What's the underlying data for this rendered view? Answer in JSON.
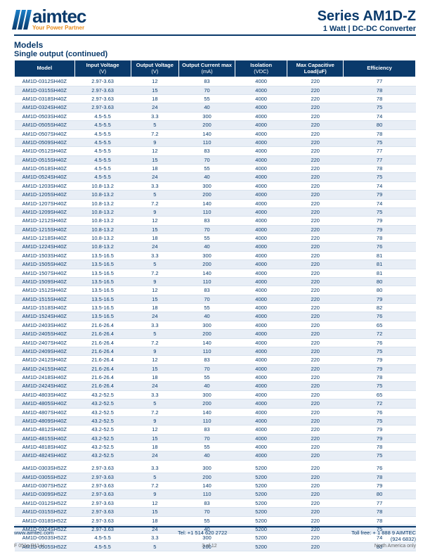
{
  "logo": {
    "main": "aimtec",
    "sub": "Your Power Partner"
  },
  "series": {
    "title": "Series AM1D-Z",
    "sub": "1 Watt | DC-DC Converter"
  },
  "section": {
    "models": "Models",
    "sub": "Single output (continued)"
  },
  "columns": [
    {
      "label": "Model",
      "unit": ""
    },
    {
      "label": "Input Voltage",
      "unit": "(V)"
    },
    {
      "label": "Output Voltage",
      "unit": "(V)"
    },
    {
      "label": "Output Current max",
      "unit": "(mA)"
    },
    {
      "label": "Isolation",
      "unit": "(VDC)"
    },
    {
      "label": "Max Capacitive Load(uF)",
      "unit": ""
    },
    {
      "label": "Efficiency",
      "unit": ""
    }
  ],
  "blocks": [
    [
      [
        "AM1D-0312SH40Z",
        "2.97-3.63",
        "12",
        "83",
        "4000",
        "220",
        "77"
      ],
      [
        "AM1D-0315SH40Z",
        "2.97-3.63",
        "15",
        "70",
        "4000",
        "220",
        "78"
      ],
      [
        "AM1D-0318SH40Z",
        "2.97-3.63",
        "18",
        "55",
        "4000",
        "220",
        "78"
      ],
      [
        "AM1D-0324SH40Z",
        "2.97-3.63",
        "24",
        "40",
        "4000",
        "220",
        "75"
      ],
      [
        "AM1D-0503SH40Z",
        "4.5-5.5",
        "3.3",
        "300",
        "4000",
        "220",
        "74"
      ],
      [
        "AM1D-0505SH40Z",
        "4.5-5.5",
        "5",
        "200",
        "4000",
        "220",
        "80"
      ],
      [
        "AM1D-0507SH40Z",
        "4.5-5.5",
        "7.2",
        "140",
        "4000",
        "220",
        "78"
      ],
      [
        "AM1D-0509SH40Z",
        "4.5-5.5",
        "9",
        "110",
        "4000",
        "220",
        "75"
      ],
      [
        "AM1D-0512SH40Z",
        "4.5-5.5",
        "12",
        "83",
        "4000",
        "220",
        "77"
      ],
      [
        "AM1D-0515SH40Z",
        "4.5-5.5",
        "15",
        "70",
        "4000",
        "220",
        "77"
      ],
      [
        "AM1D-0518SH40Z",
        "4.5-5.5",
        "18",
        "55",
        "4000",
        "220",
        "78"
      ],
      [
        "AM1D-0524SH40Z",
        "4.5-5.5",
        "24",
        "40",
        "4000",
        "220",
        "75"
      ],
      [
        "AM1D-1203SH40Z",
        "10.8-13.2",
        "3.3",
        "300",
        "4000",
        "220",
        "74"
      ],
      [
        "AM1D-1205SH40Z",
        "10.8-13.2",
        "5",
        "200",
        "4000",
        "220",
        "79"
      ],
      [
        "AM1D-1207SH40Z",
        "10.8-13.2",
        "7.2",
        "140",
        "4000",
        "220",
        "74"
      ],
      [
        "AM1D-1209SH40Z",
        "10.8-13.2",
        "9",
        "110",
        "4000",
        "220",
        "75"
      ],
      [
        "AM1D-1212SH40Z",
        "10.8-13.2",
        "12",
        "83",
        "4000",
        "220",
        "79"
      ],
      [
        "AM1D-1215SH40Z",
        "10.8-13.2",
        "15",
        "70",
        "4000",
        "220",
        "79"
      ],
      [
        "AM1D-1218SH40Z",
        "10.8-13.2",
        "18",
        "55",
        "4000",
        "220",
        "78"
      ],
      [
        "AM1D-1224SH40Z",
        "10.8-13.2",
        "24",
        "40",
        "4000",
        "220",
        "76"
      ],
      [
        "AM1D-1503SH40Z",
        "13.5-16.5",
        "3.3",
        "300",
        "4000",
        "220",
        "81"
      ],
      [
        "AM1D-1505SH40Z",
        "13.5-16.5",
        "5",
        "200",
        "4000",
        "220",
        "81"
      ],
      [
        "AM1D-1507SH40Z",
        "13.5-16.5",
        "7.2",
        "140",
        "4000",
        "220",
        "81"
      ],
      [
        "AM1D-1509SH40Z",
        "13.5-16.5",
        "9",
        "110",
        "4000",
        "220",
        "80"
      ],
      [
        "AM1D-1512SH40Z",
        "13.5-16.5",
        "12",
        "83",
        "4000",
        "220",
        "80"
      ],
      [
        "AM1D-1515SH40Z",
        "13.5-16.5",
        "15",
        "70",
        "4000",
        "220",
        "79"
      ],
      [
        "AM1D-1518SH40Z",
        "13.5-16.5",
        "18",
        "55",
        "4000",
        "220",
        "82"
      ],
      [
        "AM1D-1524SH40Z",
        "13.5-16.5",
        "24",
        "40",
        "4000",
        "220",
        "76"
      ],
      [
        "AM1D-2403SH40Z",
        "21.6-26.4",
        "3.3",
        "300",
        "4000",
        "220",
        "65"
      ],
      [
        "AM1D-2405SH40Z",
        "21.6-26.4",
        "5",
        "200",
        "4000",
        "220",
        "72"
      ],
      [
        "AM1D-2407SH40Z",
        "21.6-26.4",
        "7.2",
        "140",
        "4000",
        "220",
        "76"
      ],
      [
        "AM1D-2409SH40Z",
        "21.6-26.4",
        "9",
        "110",
        "4000",
        "220",
        "75"
      ],
      [
        "AM1D-2412SH40Z",
        "21.6-26.4",
        "12",
        "83",
        "4000",
        "220",
        "79"
      ],
      [
        "AM1D-2415SH40Z",
        "21.6-26.4",
        "15",
        "70",
        "4000",
        "220",
        "79"
      ],
      [
        "AM1D-2418SH40Z",
        "21.6-26.4",
        "18",
        "55",
        "4000",
        "220",
        "78"
      ],
      [
        "AM1D-2424SH40Z",
        "21.6-26.4",
        "24",
        "40",
        "4000",
        "220",
        "75"
      ],
      [
        "AM1D-4803SH40Z",
        "43.2-52.5",
        "3.3",
        "300",
        "4000",
        "220",
        "65"
      ],
      [
        "AM1D-4805SH40Z",
        "43.2-52.5",
        "5",
        "200",
        "4000",
        "220",
        "72"
      ],
      [
        "AM1D-4807SH40Z",
        "43.2-52.5",
        "7.2",
        "140",
        "4000",
        "220",
        "76"
      ],
      [
        "AM1D-4809SH40Z",
        "43.2-52.5",
        "9",
        "110",
        "4000",
        "220",
        "75"
      ],
      [
        "AM1D-4812SH40Z",
        "43.2-52.5",
        "12",
        "83",
        "4000",
        "220",
        "79"
      ],
      [
        "AM1D-4815SH40Z",
        "43.2-52.5",
        "15",
        "70",
        "4000",
        "220",
        "79"
      ],
      [
        "AM1D-4818SH40Z",
        "43.2-52.5",
        "18",
        "55",
        "4000",
        "220",
        "78"
      ],
      [
        "AM1D-4824SH40Z",
        "43.2-52.5",
        "24",
        "40",
        "4000",
        "220",
        "75"
      ]
    ],
    [
      [
        "AM1D-0303SH52Z",
        "2.97-3.63",
        "3.3",
        "300",
        "5200",
        "220",
        "76"
      ],
      [
        "AM1D-0305SH52Z",
        "2.97-3.63",
        "5",
        "200",
        "5200",
        "220",
        "78"
      ],
      [
        "AM1D-0307SH52Z",
        "2.97-3.63",
        "7.2",
        "140",
        "5200",
        "220",
        "79"
      ],
      [
        "AM1D-0309SH52Z",
        "2.97-3.63",
        "9",
        "110",
        "5200",
        "220",
        "80"
      ],
      [
        "AM1D-0312SH52Z",
        "2.97-3.63",
        "12",
        "83",
        "5200",
        "220",
        "77"
      ],
      [
        "AM1D-0315SH52Z",
        "2.97-3.63",
        "15",
        "70",
        "5200",
        "220",
        "78"
      ],
      [
        "AM1D-0318SH52Z",
        "2.97-3.63",
        "18",
        "55",
        "5200",
        "220",
        "78"
      ],
      [
        "AM1D-0324SH52Z",
        "2.97-3.63",
        "24",
        "40",
        "5200",
        "220",
        "75"
      ],
      [
        "AM1D-0503SH52Z",
        "4.5-5.5",
        "3.3",
        "300",
        "5200",
        "220",
        "74"
      ],
      [
        "AM1D-0505SH52Z",
        "4.5-5.5",
        "5",
        "200",
        "5200",
        "220",
        "80"
      ]
    ]
  ],
  "footer": {
    "site": "www.aimtec.com",
    "tel": "Tel: +1 514 620 2722",
    "tollfree": "Toll free: + 1 888 9 AIMTEC",
    "tollfree2": "(924 6832)",
    "rev": "F 051e R11.H",
    "page": "3 of 12",
    "region": "North America only"
  }
}
